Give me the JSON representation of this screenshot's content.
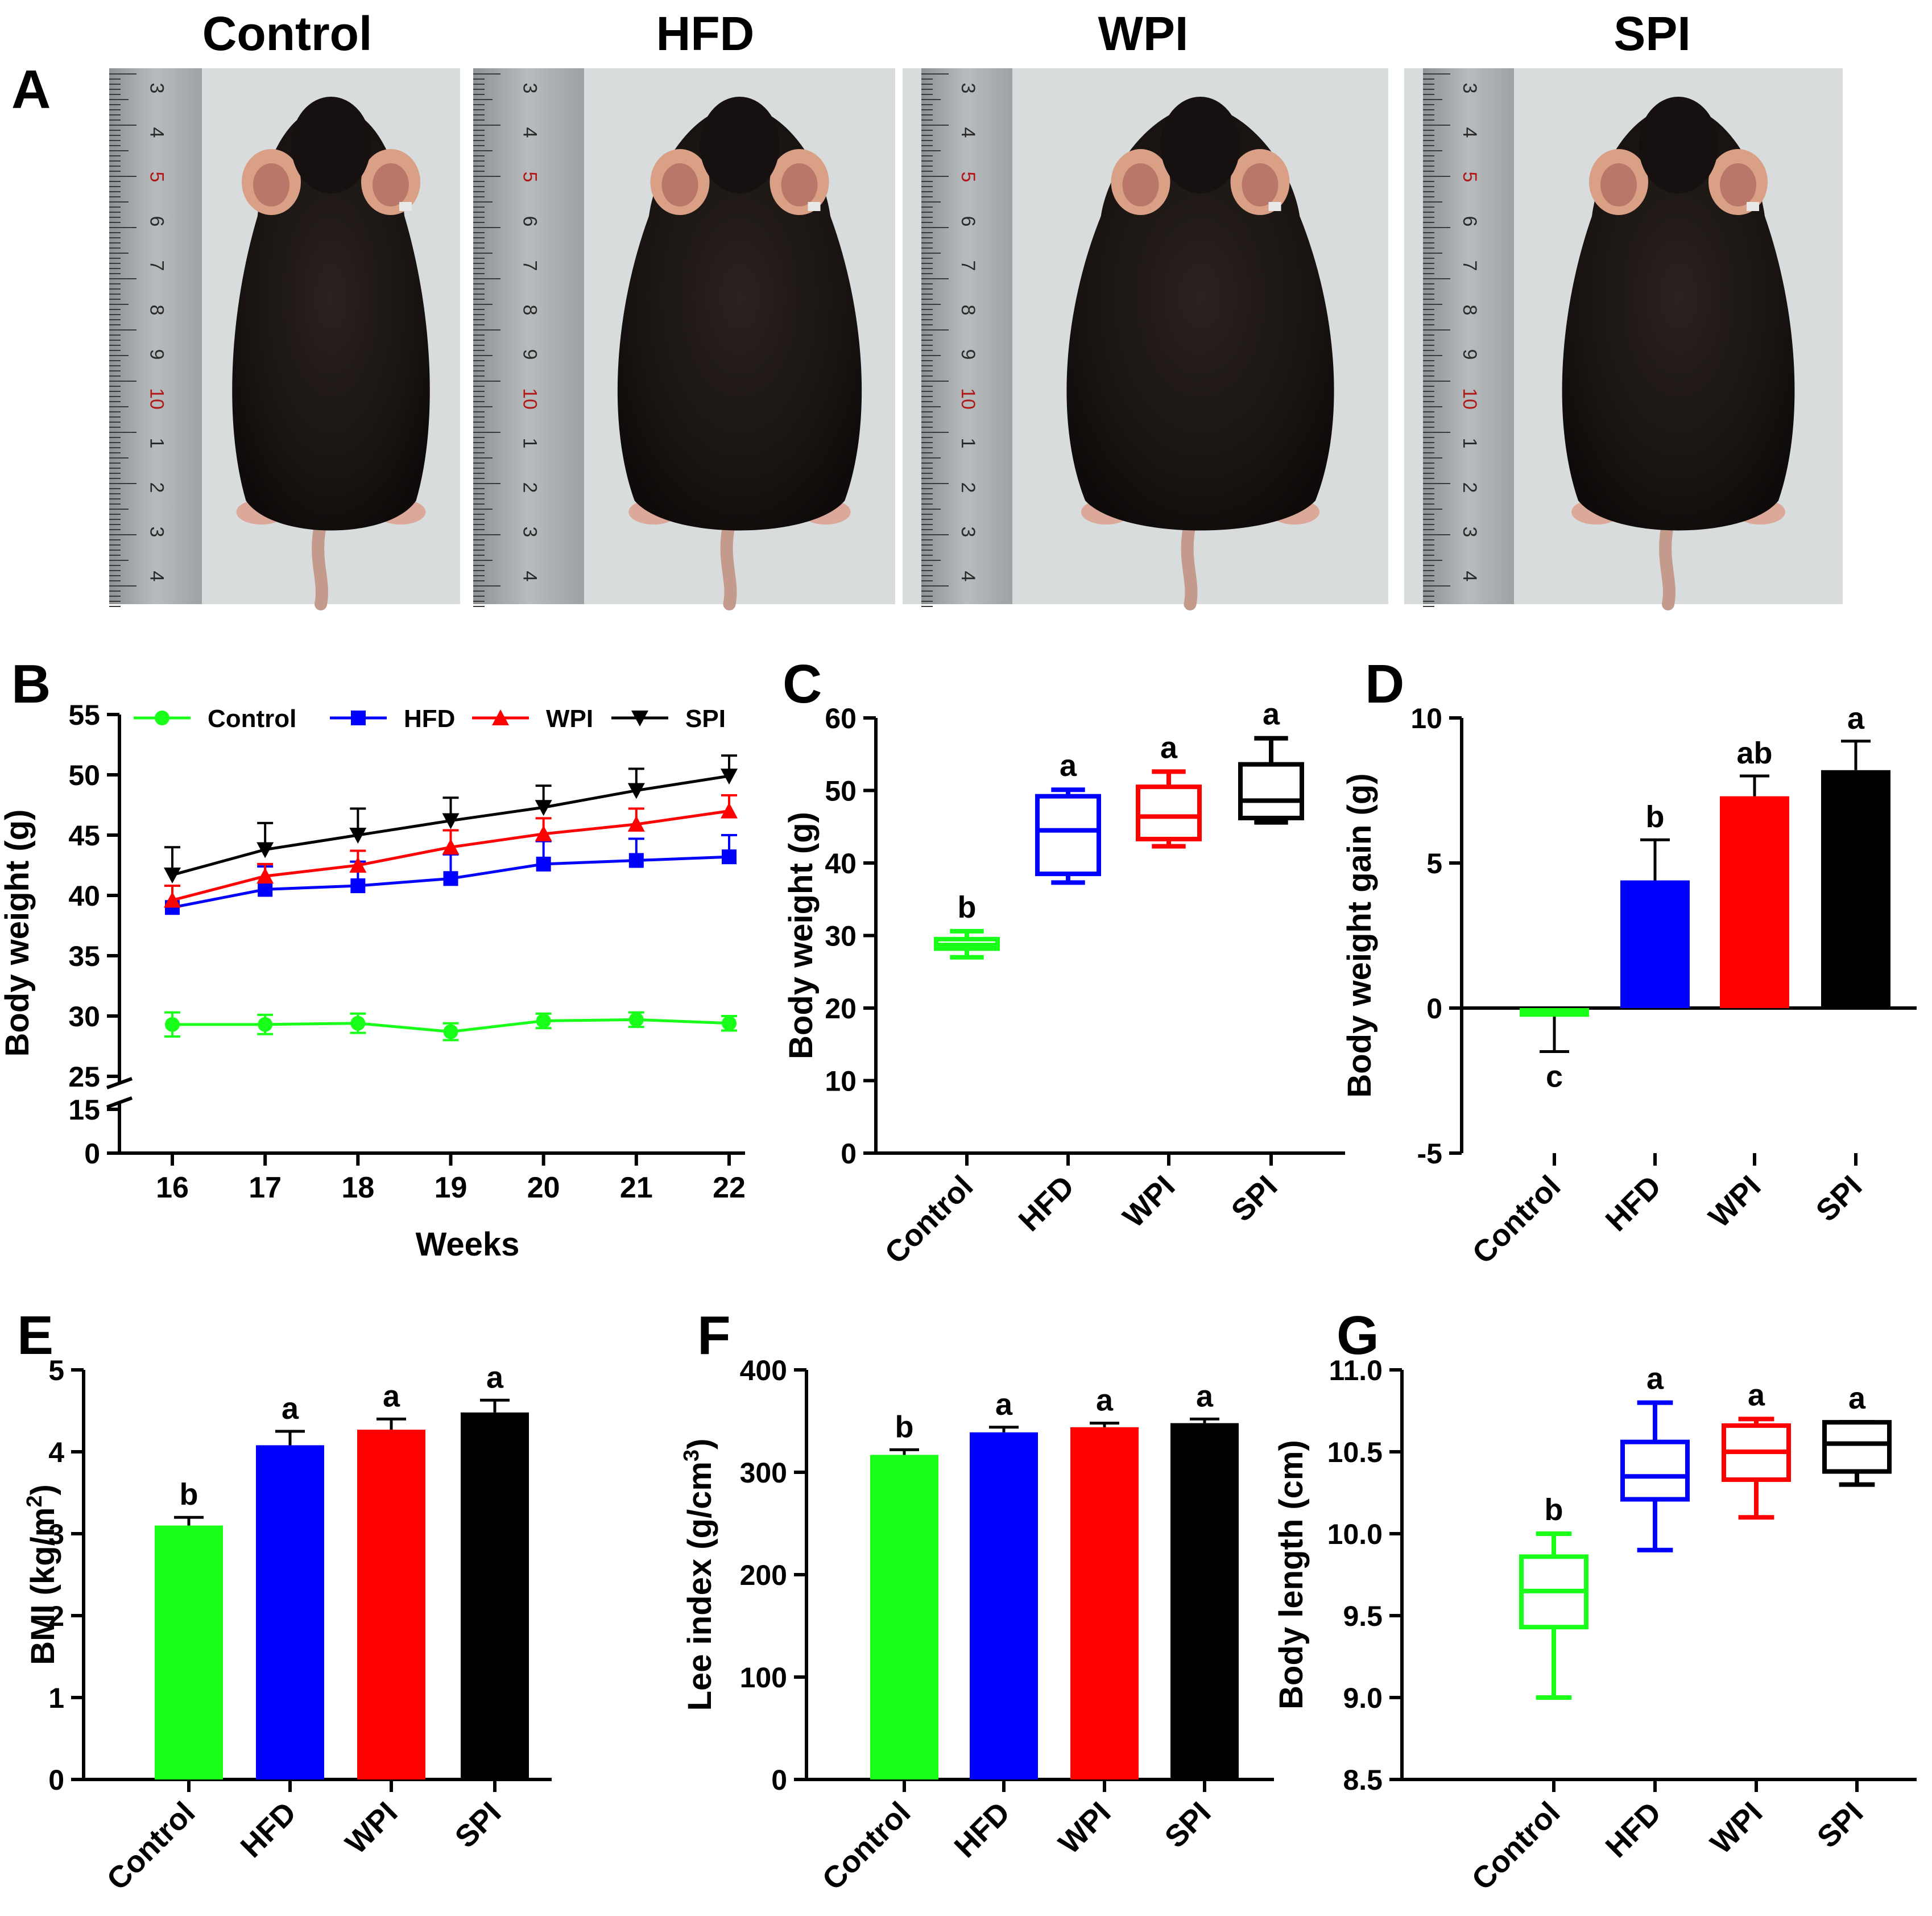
{
  "colors": {
    "Control": "#1aff1a",
    "HFD": "#0000ff",
    "WPI": "#ff0000",
    "SPI": "#000000"
  },
  "panel_labels": [
    "A",
    "B",
    "C",
    "D",
    "E",
    "F",
    "G"
  ],
  "photo_panel": {
    "groups": [
      "Control",
      "HFD",
      "WPI",
      "SPI"
    ],
    "ruler_numbers": [
      "3",
      "4",
      "5",
      "6",
      "7",
      "8",
      "9",
      "10",
      "1",
      "2",
      "3",
      "4"
    ]
  },
  "chart_data": [
    {
      "panel": "B",
      "type": "line",
      "xlabel": "Weeks",
      "ylabel": "Body weight (g)",
      "x": [
        16,
        17,
        18,
        19,
        20,
        21,
        22
      ],
      "y_ticks": [
        0,
        15,
        25,
        30,
        35,
        40,
        45,
        50,
        55
      ],
      "y_break": [
        15,
        25
      ],
      "legend_position": "top",
      "series": [
        {
          "name": "Control",
          "marker": "circle",
          "values": [
            29.3,
            29.3,
            29.4,
            28.7,
            29.6,
            29.7,
            29.4
          ],
          "sd": [
            1.0,
            0.8,
            0.8,
            0.7,
            0.6,
            0.6,
            0.6
          ]
        },
        {
          "name": "HFD",
          "marker": "square",
          "values": [
            39.0,
            40.5,
            40.8,
            41.4,
            42.6,
            42.9,
            43.2
          ],
          "sd": [
            1.8,
            1.9,
            2.0,
            2.0,
            1.9,
            1.8,
            1.8
          ]
        },
        {
          "name": "WPI",
          "marker": "triangle-up",
          "values": [
            39.6,
            41.6,
            42.5,
            44.0,
            45.1,
            45.9,
            47.0
          ],
          "sd": [
            1.2,
            1.0,
            1.2,
            1.4,
            1.3,
            1.3,
            1.3
          ]
        },
        {
          "name": "SPI",
          "marker": "triangle-down",
          "values": [
            41.7,
            43.8,
            45.0,
            46.2,
            47.3,
            48.7,
            49.9
          ],
          "sd": [
            2.3,
            2.2,
            2.2,
            1.9,
            1.8,
            1.8,
            1.7
          ]
        }
      ]
    },
    {
      "panel": "C",
      "type": "box",
      "ylabel": "Body weight (g)",
      "ylim": [
        0,
        60
      ],
      "y_ticks": [
        0,
        10,
        20,
        30,
        40,
        50,
        60
      ],
      "categories": [
        "Control",
        "HFD",
        "WPI",
        "SPI"
      ],
      "boxes": [
        {
          "min": 27.0,
          "q1": 28.2,
          "median": 28.7,
          "q3": 29.5,
          "max": 30.6
        },
        {
          "min": 37.3,
          "q1": 38.5,
          "median": 44.5,
          "q3": 49.2,
          "max": 50.1
        },
        {
          "min": 42.3,
          "q1": 43.3,
          "median": 46.4,
          "q3": 50.5,
          "max": 52.6
        },
        {
          "min": 45.6,
          "q1": 46.2,
          "median": 48.6,
          "q3": 53.6,
          "max": 57.2
        }
      ],
      "letters": [
        "b",
        "a",
        "a",
        "a"
      ]
    },
    {
      "panel": "D",
      "type": "bar",
      "ylabel": "Body weight gain (g)",
      "ylim": [
        -5,
        10
      ],
      "y_ticks": [
        -5,
        0,
        5,
        10
      ],
      "categories": [
        "Control",
        "HFD",
        "WPI",
        "SPI"
      ],
      "values": [
        -0.3,
        4.4,
        7.3,
        8.2
      ],
      "sd": [
        1.2,
        1.4,
        0.7,
        1.0
      ],
      "letters": [
        "c",
        "b",
        "ab",
        "a"
      ]
    },
    {
      "panel": "E",
      "type": "bar",
      "ylabel": "BMI (kg/m",
      "ylabel_superscript": "2",
      "ylabel_suffix": ")",
      "ylim": [
        0,
        5
      ],
      "y_ticks": [
        0,
        1,
        2,
        3,
        4,
        5
      ],
      "categories": [
        "Control",
        "HFD",
        "WPI",
        "SPI"
      ],
      "values": [
        3.1,
        4.08,
        4.27,
        4.48
      ],
      "sd": [
        0.1,
        0.17,
        0.13,
        0.15
      ],
      "letters": [
        "b",
        "a",
        "a",
        "a"
      ]
    },
    {
      "panel": "F",
      "type": "bar",
      "ylabel": "Lee index (g/cm",
      "ylabel_superscript": "3",
      "ylabel_suffix": ")",
      "ylim": [
        0,
        400
      ],
      "y_ticks": [
        0,
        100,
        200,
        300,
        400
      ],
      "categories": [
        "Control",
        "HFD",
        "WPI",
        "SPI"
      ],
      "values": [
        317,
        339,
        344,
        348
      ],
      "sd": [
        5,
        5,
        4,
        4
      ],
      "letters": [
        "b",
        "a",
        "a",
        "a"
      ]
    },
    {
      "panel": "G",
      "type": "box",
      "ylabel": "Body length (cm)",
      "ylim": [
        8.5,
        11.0
      ],
      "y_ticks": [
        "8.5",
        "9.0",
        "9.5",
        "10.0",
        "10.5",
        "11.0"
      ],
      "categories": [
        "Control",
        "HFD",
        "WPI",
        "SPI"
      ],
      "boxes": [
        {
          "min": 9.0,
          "q1": 9.43,
          "median": 9.65,
          "q3": 9.86,
          "max": 10.0
        },
        {
          "min": 9.9,
          "q1": 10.21,
          "median": 10.35,
          "q3": 10.56,
          "max": 10.8
        },
        {
          "min": 10.1,
          "q1": 10.33,
          "median": 10.5,
          "q3": 10.66,
          "max": 10.7
        },
        {
          "min": 10.3,
          "q1": 10.38,
          "median": 10.55,
          "q3": 10.68,
          "max": 10.68
        }
      ],
      "letters": [
        "b",
        "a",
        "a",
        "a"
      ]
    }
  ]
}
